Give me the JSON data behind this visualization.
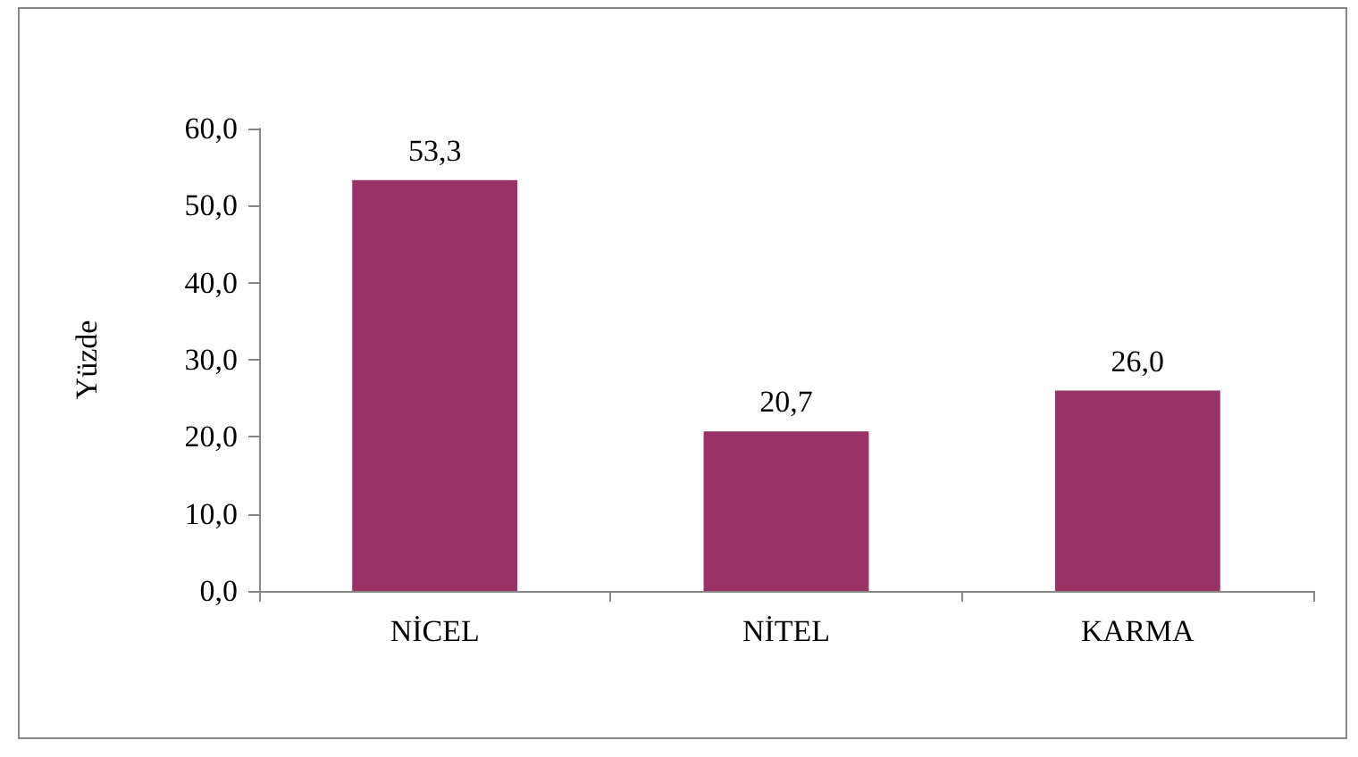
{
  "chart_data": {
    "type": "bar",
    "ylabel": "Yüzde",
    "categories": [
      "NİCEL",
      "NİTEL",
      "KARMA"
    ],
    "values": [
      53.3,
      20.7,
      26.0
    ],
    "value_labels": [
      "53,3",
      "20,7",
      "26,0"
    ],
    "color": "#993366",
    "ylim": [
      0,
      60
    ],
    "yticks": [
      {
        "value": 0,
        "label": "0,0"
      },
      {
        "value": 10,
        "label": "10,0"
      },
      {
        "value": 20,
        "label": "20,0"
      },
      {
        "value": 30,
        "label": "30,0"
      },
      {
        "value": 40,
        "label": "40,0"
      },
      {
        "value": 50,
        "label": "50,0"
      },
      {
        "value": 60,
        "label": "60,0"
      }
    ],
    "grid": false
  }
}
